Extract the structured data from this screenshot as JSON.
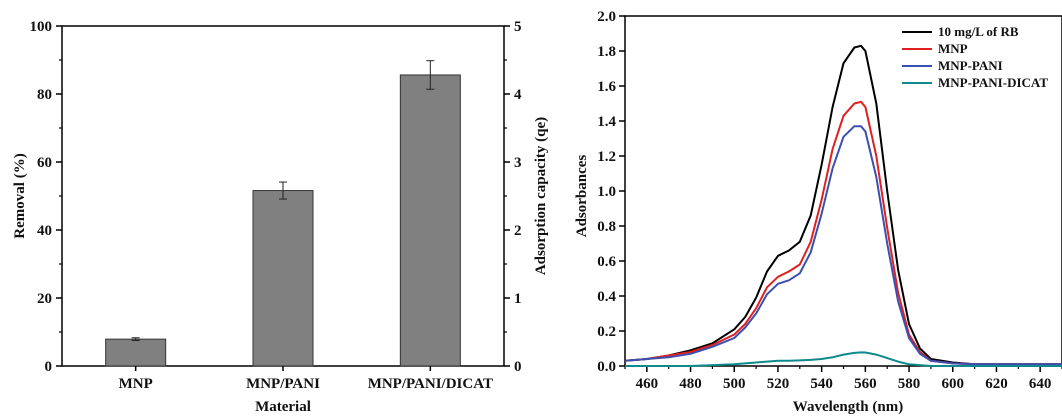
{
  "chart_data": [
    {
      "type": "bar",
      "xlabel": "Material",
      "ylabel": "Removal (%)",
      "ylabel_right": "Adsorption capacity (qe)",
      "categories": [
        "MNP",
        "MNP/PANI",
        "MNP/PANI/DICAT"
      ],
      "values": [
        7.9,
        51.6,
        85.6
      ],
      "errors": [
        0.4,
        2.5,
        4.2
      ],
      "ylim": [
        0,
        100
      ],
      "yticks": [
        "0",
        "20",
        "40",
        "60",
        "80",
        "100"
      ],
      "ylim_right": [
        0,
        5
      ],
      "yticks_right": [
        "0",
        "1",
        "2",
        "3",
        "4",
        "5"
      ],
      "bar_color": "#808080",
      "grid": false
    },
    {
      "type": "line",
      "xlabel": "Wavelength (nm)",
      "ylabel": "Adsorbances",
      "xlim": [
        450,
        650
      ],
      "ylim": [
        0,
        2.0
      ],
      "xticks": [
        "460",
        "480",
        "500",
        "520",
        "540",
        "560",
        "580",
        "600",
        "620",
        "640"
      ],
      "yticks": [
        "0.0",
        "0.2",
        "0.4",
        "0.6",
        "0.8",
        "1.0",
        "1.2",
        "1.4",
        "1.6",
        "1.8",
        "2.0"
      ],
      "legend_position": "top-right",
      "grid": false,
      "x": [
        450,
        460,
        470,
        480,
        490,
        500,
        505,
        510,
        515,
        520,
        525,
        530,
        535,
        540,
        545,
        550,
        555,
        558,
        560,
        565,
        570,
        575,
        580,
        585,
        590,
        600,
        610,
        620,
        630,
        640,
        650
      ],
      "series": [
        {
          "name": "10 mg/L of RB",
          "color": "#000000",
          "values": [
            0.03,
            0.04,
            0.06,
            0.09,
            0.13,
            0.21,
            0.28,
            0.39,
            0.54,
            0.63,
            0.66,
            0.71,
            0.86,
            1.15,
            1.48,
            1.73,
            1.82,
            1.83,
            1.8,
            1.5,
            1.0,
            0.55,
            0.24,
            0.1,
            0.04,
            0.02,
            0.01,
            0.01,
            0.01,
            0.01,
            0.01
          ]
        },
        {
          "name": "MNP",
          "color": "#e02020",
          "values": [
            0.03,
            0.04,
            0.06,
            0.08,
            0.12,
            0.18,
            0.24,
            0.33,
            0.45,
            0.51,
            0.54,
            0.58,
            0.71,
            0.95,
            1.24,
            1.43,
            1.5,
            1.51,
            1.48,
            1.2,
            0.79,
            0.42,
            0.18,
            0.08,
            0.03,
            0.015,
            0.01,
            0.01,
            0.01,
            0.01,
            0.01
          ]
        },
        {
          "name": "MNP-PANI",
          "color": "#3a4fb0",
          "values": [
            0.03,
            0.04,
            0.05,
            0.07,
            0.11,
            0.16,
            0.22,
            0.3,
            0.41,
            0.47,
            0.49,
            0.53,
            0.65,
            0.87,
            1.13,
            1.31,
            1.37,
            1.37,
            1.34,
            1.08,
            0.7,
            0.37,
            0.16,
            0.07,
            0.03,
            0.015,
            0.01,
            0.01,
            0.01,
            0.01,
            0.01
          ]
        },
        {
          "name": "MNP-PANI-DICAT",
          "color": "#0e8a8a",
          "values": [
            0.0,
            0.0,
            0.0,
            0.0,
            0.005,
            0.01,
            0.015,
            0.02,
            0.025,
            0.03,
            0.03,
            0.032,
            0.035,
            0.04,
            0.05,
            0.065,
            0.075,
            0.078,
            0.077,
            0.065,
            0.045,
            0.025,
            0.01,
            0.005,
            0.0,
            0.0,
            0.0,
            0.0,
            0.0,
            0.0,
            0.0
          ]
        }
      ]
    }
  ]
}
